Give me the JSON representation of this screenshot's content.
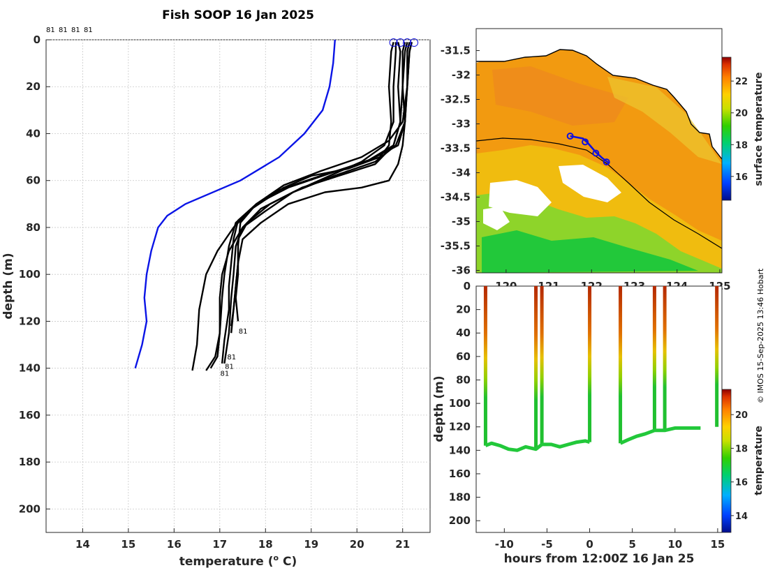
{
  "title": "Fish SOOP 16 Jan 2025",
  "credit": "© IMOS 15-Sep-2025 13:46 Hobart",
  "colors": {
    "profile": "#000000",
    "climatology": "#0a14e6",
    "track": "#1010dd",
    "coast": "#000000"
  },
  "chart_data": [
    {
      "type": "line",
      "name": "temperature-profiles",
      "xlabel": "temperature (",
      "xlabel_unit": "o",
      "xlabel_tail": " C)",
      "ylabel": "depth (m)",
      "xlim": [
        13.2,
        21.6
      ],
      "ylim": [
        210,
        0
      ],
      "xticks": [
        14,
        15,
        16,
        17,
        18,
        19,
        20,
        21
      ],
      "yticks": [
        0,
        20,
        40,
        60,
        80,
        100,
        120,
        140,
        160,
        180,
        200
      ],
      "top_labels": [
        "81",
        "81",
        "81",
        "81"
      ],
      "end_labels": [
        "81",
        "81",
        "81",
        "81"
      ],
      "climatology": {
        "temperature": [
          19.52,
          19.48,
          19.4,
          19.25,
          18.85,
          18.3,
          17.45,
          16.25,
          15.85,
          15.65,
          15.5,
          15.4,
          15.35,
          15.4,
          15.3,
          15.15
        ],
        "depth": [
          0,
          10,
          20,
          30,
          40,
          50,
          60,
          70,
          75,
          80,
          90,
          100,
          110,
          120,
          130,
          140
        ]
      },
      "profiles": [
        {
          "temperature": [
            20.8,
            20.75,
            20.7,
            20.75,
            20.7,
            20.5,
            19.8,
            19.0,
            18.4,
            17.7,
            17.3,
            16.95,
            16.7,
            16.6,
            16.55,
            16.5,
            16.4
          ],
          "depth": [
            1,
            5,
            20,
            35,
            45,
            50,
            55,
            58,
            63,
            72,
            80,
            90,
            100,
            110,
            115,
            130,
            141
          ]
        },
        {
          "temperature": [
            20.85,
            20.85,
            20.8,
            20.8,
            20.6,
            20.1,
            19.4,
            18.6,
            18.0,
            17.5,
            17.2,
            17.05,
            17.0,
            17.0,
            16.9,
            16.7
          ],
          "depth": [
            1,
            5,
            20,
            35,
            45,
            52,
            58,
            65,
            73,
            80,
            90,
            100,
            110,
            125,
            135,
            141
          ]
        },
        {
          "temperature": [
            20.9,
            20.95,
            20.9,
            20.95,
            20.8,
            20.2,
            19.2,
            18.3,
            17.7,
            17.35,
            17.2,
            17.1,
            17.05,
            17.0,
            16.95,
            16.8
          ],
          "depth": [
            1,
            5,
            20,
            35,
            45,
            52,
            58,
            64,
            72,
            78,
            88,
            100,
            110,
            125,
            135,
            140
          ]
        },
        {
          "temperature": [
            21.05,
            21.0,
            21.0,
            21.05,
            20.9,
            20.3,
            19.4,
            18.5,
            17.8,
            17.4,
            17.3,
            17.25,
            17.2,
            17.2,
            17.1,
            17.05
          ],
          "depth": [
            1,
            5,
            20,
            35,
            45,
            51,
            57,
            63,
            70,
            77,
            85,
            95,
            105,
            115,
            128,
            138
          ]
        },
        {
          "temperature": [
            21.15,
            21.1,
            21.1,
            21.05,
            20.85,
            20.4,
            19.5,
            18.6,
            17.9,
            17.5,
            17.35,
            17.3,
            17.25,
            17.2,
            17.1
          ],
          "depth": [
            1,
            5,
            20,
            35,
            45,
            52,
            58,
            65,
            72,
            80,
            88,
            100,
            110,
            125,
            138
          ]
        },
        {
          "temperature": [
            21.2,
            21.15,
            21.1,
            21.0,
            20.7,
            20.1,
            19.2,
            18.4,
            17.8,
            17.45,
            17.4,
            17.4,
            17.35,
            17.4
          ],
          "depth": [
            1,
            5,
            20,
            35,
            43,
            50,
            56,
            62,
            70,
            78,
            88,
            100,
            110,
            120
          ]
        },
        {
          "temperature": [
            21.1,
            21.05,
            21.0,
            20.95,
            20.8,
            20.4,
            19.6,
            18.8,
            18.1,
            17.6,
            17.4,
            17.4,
            17.35,
            17.3,
            17.25
          ],
          "depth": [
            1,
            5,
            20,
            35,
            45,
            53,
            58,
            63,
            70,
            78,
            85,
            95,
            105,
            115,
            125
          ]
        },
        {
          "temperature": [
            21.2,
            21.15,
            21.1,
            21.05,
            21.0,
            20.9,
            20.7,
            20.1,
            19.3,
            18.5,
            17.9,
            17.5,
            17.4,
            17.35,
            17.3,
            17.25
          ],
          "depth": [
            1,
            5,
            20,
            35,
            45,
            53,
            60,
            63,
            65,
            70,
            78,
            85,
            95,
            105,
            115,
            122
          ]
        }
      ],
      "surface_points": [
        20.8,
        20.95,
        21.1,
        21.25
      ]
    },
    {
      "type": "heatmap",
      "name": "surface-temperature-map",
      "colorbar_label": "surface temperature",
      "lat_ticks": [
        -31.5,
        -32,
        -32.5,
        -33,
        -33.5,
        -34,
        -34.5,
        -35,
        -35.5,
        -36
      ],
      "lon_ticks": [
        "120",
        "121",
        "122",
        "123",
        "124",
        "125"
      ],
      "lon_range": [
        119.3,
        125.05
      ],
      "lat_range": [
        -36.05,
        -31.05
      ],
      "colorbar_ticks": [
        16,
        18,
        20,
        22
      ],
      "colorbar_range": [
        14.5,
        23.5
      ],
      "track": {
        "lon": [
          121.5,
          121.8,
          121.9,
          122.1,
          122.25,
          122.4
        ],
        "lat": [
          -33.25,
          -33.3,
          -33.38,
          -33.58,
          -33.7,
          -33.8
        ],
        "markers": [
          [
            121.5,
            -33.25
          ],
          [
            121.85,
            -33.37
          ],
          [
            122.1,
            -33.6
          ],
          [
            122.35,
            -33.78
          ]
        ]
      }
    },
    {
      "type": "scatter",
      "name": "depth-time-section",
      "xlabel": "hours from 12:00Z 16 Jan 25",
      "ylabel": "depth (m)",
      "colorbar_label": "temperature",
      "xlim": [
        -13.3,
        15.5
      ],
      "ylim": [
        210,
        0
      ],
      "xticks": [
        -10,
        -5,
        0,
        5,
        10,
        15
      ],
      "yticks": [
        0,
        20,
        40,
        60,
        80,
        100,
        120,
        140,
        160,
        180,
        200
      ],
      "colorbar_ticks": [
        14,
        16,
        18,
        20
      ],
      "colorbar_range": [
        13,
        21.5
      ],
      "casts": [
        -12.2,
        -6.3,
        -5.6,
        0.0,
        3.6,
        7.6,
        8.8,
        14.9
      ],
      "bottom": [
        {
          "t": -12.2,
          "d": 136
        },
        {
          "t": -11.5,
          "d": 134
        },
        {
          "t": -10.5,
          "d": 136
        },
        {
          "t": -9.5,
          "d": 139
        },
        {
          "t": -8.5,
          "d": 140
        },
        {
          "t": -7.5,
          "d": 137
        },
        {
          "t": -6.3,
          "d": 139
        },
        {
          "t": -5.6,
          "d": 135
        },
        {
          "t": -4.5,
          "d": 135
        },
        {
          "t": -3.5,
          "d": 137
        },
        {
          "t": -2.5,
          "d": 135
        },
        {
          "t": -1.5,
          "d": 133
        },
        {
          "t": -0.5,
          "d": 132
        },
        {
          "t": 0.0,
          "d": 133
        },
        {
          "t": 3.6,
          "d": 134
        },
        {
          "t": 4.5,
          "d": 131
        },
        {
          "t": 5.5,
          "d": 128
        },
        {
          "t": 6.5,
          "d": 126
        },
        {
          "t": 7.6,
          "d": 123
        },
        {
          "t": 8.8,
          "d": 123
        },
        {
          "t": 10.0,
          "d": 121
        },
        {
          "t": 11.5,
          "d": 121
        },
        {
          "t": 13.0,
          "d": 121
        },
        {
          "t": 14.9,
          "d": 120
        }
      ]
    }
  ]
}
